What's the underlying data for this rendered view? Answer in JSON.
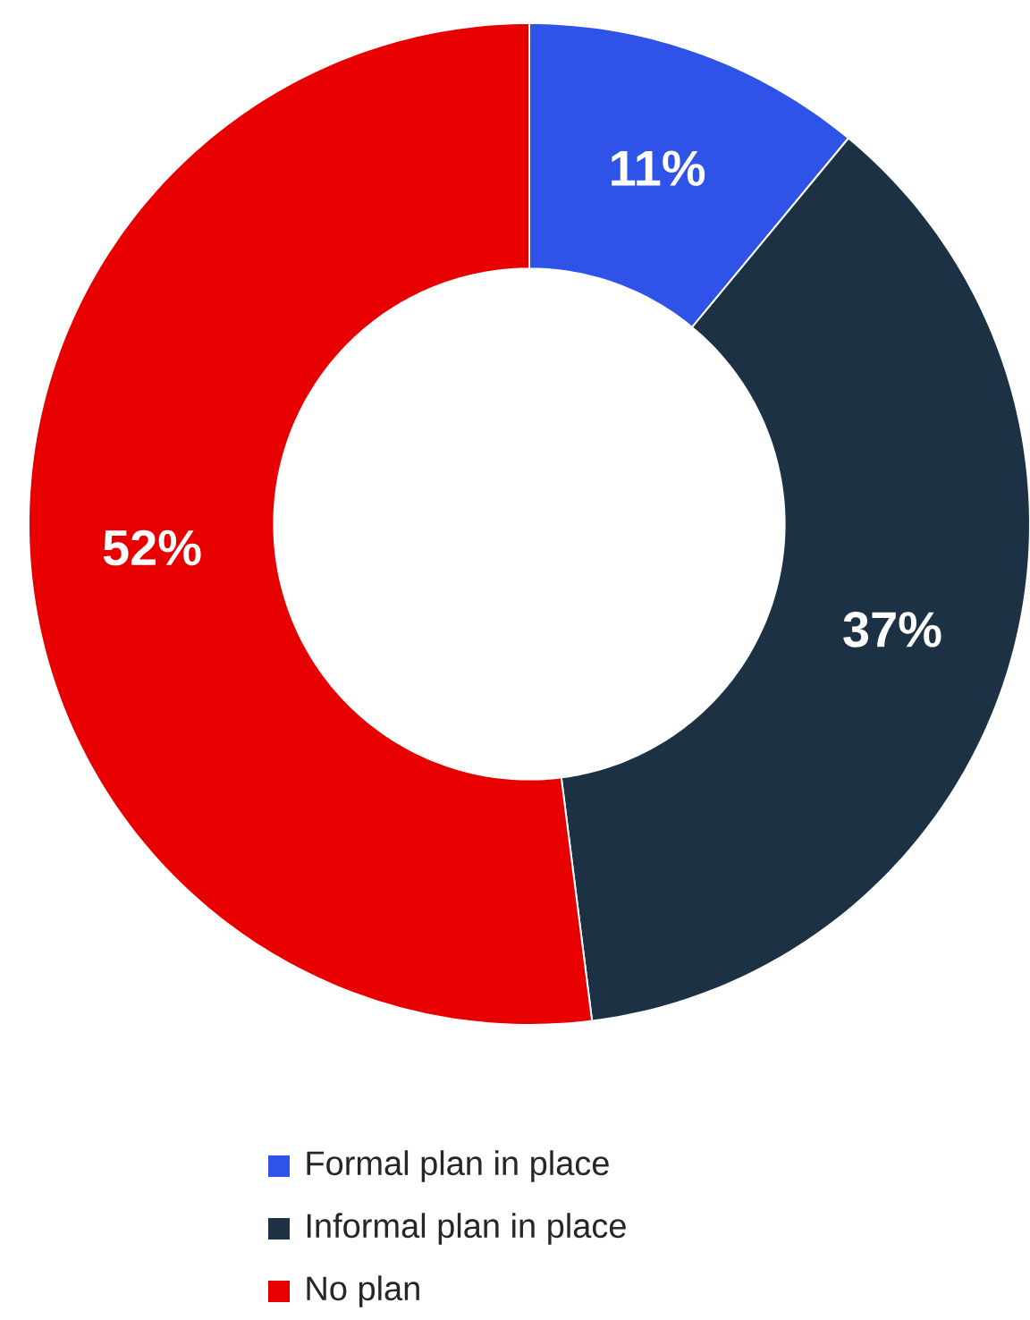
{
  "chart_data": {
    "type": "donut",
    "categories": [
      "Formal plan in place",
      "Informal plan in place",
      "No plan"
    ],
    "values": [
      11,
      37,
      52
    ],
    "colors": [
      "#2f52e8",
      "#1c3244",
      "#e80000"
    ],
    "value_labels": [
      "11%",
      "37%",
      "52%"
    ],
    "legend": "bottom"
  }
}
